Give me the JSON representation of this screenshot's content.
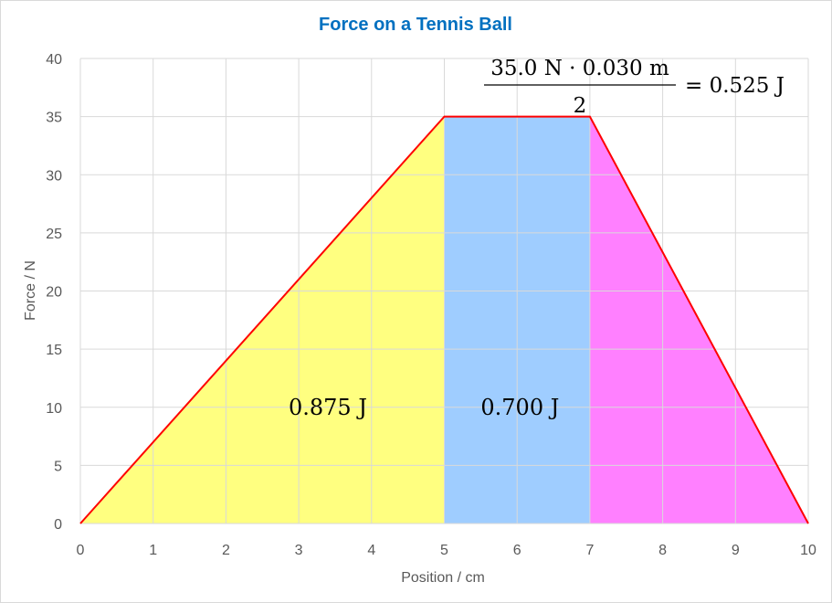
{
  "chart_data": {
    "type": "area",
    "title": "Force on a Tennis Ball",
    "xlabel": "Position / cm",
    "ylabel": "Force / N",
    "xlim": [
      0,
      10
    ],
    "ylim": [
      0,
      40
    ],
    "x_ticks": [
      "0",
      "1",
      "2",
      "3",
      "4",
      "5",
      "6",
      "7",
      "8",
      "9",
      "10"
    ],
    "y_ticks": [
      "0",
      "5",
      "10",
      "15",
      "20",
      "25",
      "30",
      "35",
      "40"
    ],
    "grid": true,
    "series": [
      {
        "x": [
          0,
          5,
          7,
          10
        ],
        "y": [
          0,
          35,
          35,
          0
        ],
        "color": "#ff0000"
      }
    ],
    "regions": [
      {
        "x": [
          0,
          5
        ],
        "label": "0.875 J",
        "color": "#ffff80"
      },
      {
        "x": [
          5,
          7
        ],
        "label": "0.700 J",
        "color": "#9fcdff"
      },
      {
        "x": [
          7,
          10
        ],
        "label": "",
        "color": "#ff80ff"
      }
    ],
    "annotation": {
      "numerator": "35.0 N · 0.030 m",
      "denominator": "2",
      "result": "= 0.525 J"
    }
  }
}
